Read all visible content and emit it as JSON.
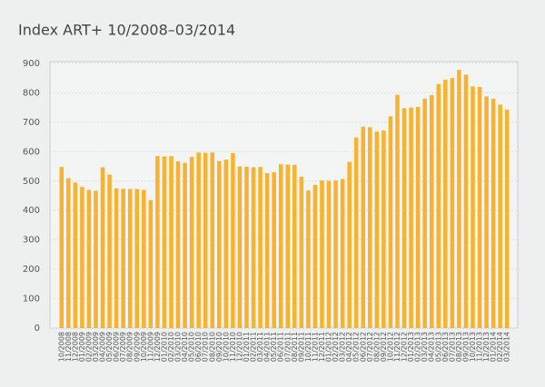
{
  "chart_data": {
    "type": "bar",
    "title": "Index ART+ 10/2008–03/2014",
    "categories": [
      "10/2008",
      "11/2008",
      "12/2008",
      "01/2009",
      "02/2009",
      "03/2009",
      "04/2009",
      "05/2009",
      "06/2009",
      "07/2009",
      "08/2009",
      "09/2009",
      "10/2009",
      "11/2009",
      "12/2009",
      "01/2010",
      "02/2010",
      "03/2010",
      "04/2010",
      "05/2010",
      "06/2010",
      "07/2010",
      "08/2010",
      "09/2010",
      "10/2010",
      "11/2010",
      "12/2010",
      "01/2011",
      "02/2011",
      "03/2011",
      "04/2011",
      "05/2011",
      "06/2011",
      "07/2011",
      "08/2011",
      "09/2011",
      "10/2011",
      "11/2011",
      "12/2011",
      "01/2012",
      "02/2012",
      "03/2012",
      "04/2012",
      "05/2012",
      "06/2012",
      "07/2012",
      "08/2012",
      "09/2012",
      "10/2012",
      "11/2012",
      "12/2012",
      "01/2013",
      "02/2013",
      "03/2013",
      "04/2013",
      "05/2013",
      "06/2013",
      "07/2013",
      "08/2013",
      "09/2013",
      "10/2013",
      "11/2013",
      "12/2013",
      "01/2014",
      "02/2014",
      "03/2014"
    ],
    "values": [
      548,
      510,
      495,
      480,
      470,
      467,
      547,
      522,
      475,
      474,
      473,
      473,
      470,
      435,
      585,
      584,
      585,
      567,
      562,
      582,
      597,
      596,
      597,
      568,
      573,
      595,
      550,
      549,
      547,
      548,
      527,
      530,
      557,
      556,
      555,
      515,
      468,
      487,
      502,
      501,
      502,
      507,
      565,
      648,
      685,
      683,
      668,
      672,
      720,
      793,
      748,
      750,
      752,
      780,
      792,
      830,
      845,
      850,
      878,
      862,
      822,
      820,
      788,
      780,
      760,
      743
    ],
    "color": "#f7b330",
    "ylim": [
      0,
      900
    ],
    "yticks": [
      0,
      100,
      200,
      300,
      400,
      500,
      600,
      700,
      800,
      900
    ],
    "grid": true
  }
}
